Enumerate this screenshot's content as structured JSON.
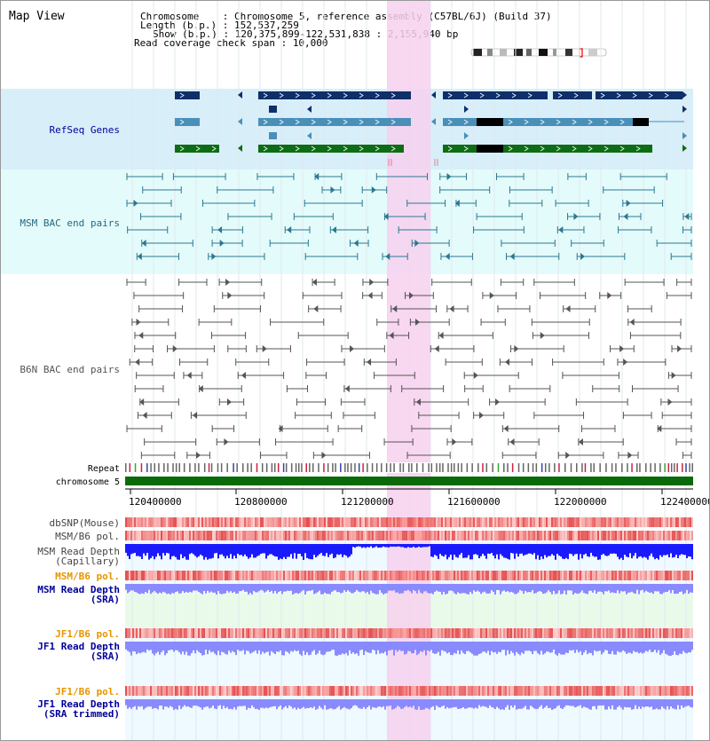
{
  "view_title": "Map View",
  "info": {
    "chromosome_label": "Chromosome    : ",
    "chromosome_value": "Chromosome 5, reference assembly (C57BL/6J) (Build 37)",
    "length_label": "Length (b.p.) : ",
    "length_value": "152,537,259",
    "show_label": "Show (b.p.) : ",
    "show_value": "120,375,899-122,531,838 : 2,155,940 bp",
    "coverage_label": "Read coverage check span : ",
    "coverage_value": "10,000"
  },
  "tracks": {
    "refseq": "RefSeq Genes",
    "msm_bac": "MSM BAC end pairs",
    "b6n_bac": "B6N BAC end pairs",
    "repeat": "Repeat",
    "chrom": "chromosome 5",
    "dbsnp": "dbSNP(Mouse)",
    "msm_b6_pol1": "MSM/B6 pol.",
    "msm_depth_cap_1": "MSM Read Depth",
    "msm_depth_cap_2": "(Capillary)",
    "msm_b6_pol2": "MSM/B6 pol.",
    "msm_depth_sra_1": "MSM Read Depth",
    "msm_depth_sra_2": "(SRA)",
    "jf1_b6_pol1": "JF1/B6 pol.",
    "jf1_depth_sra_1": "JF1 Read Depth",
    "jf1_depth_sra_2": "(SRA)",
    "jf1_b6_pol2": "JF1/B6 pol.",
    "jf1_depth_trim_1": "JF1 Read Depth",
    "jf1_depth_trim_2": "(SRA trimmed)"
  },
  "axis": {
    "ticks": [
      "120400000",
      "120800000",
      "121200000",
      "121600000",
      "122000000",
      "122400000"
    ]
  },
  "colors": {
    "refseq_bg": "#d8eef9",
    "msm_bg": "#e4fbfb",
    "highlight": "#f7d0ef",
    "gene_dark": "#0f2f6a",
    "gene_mid": "#4a8fb8",
    "gene_green": "#0d6d14",
    "msm_line": "#2b7891",
    "b6n_line": "#555555",
    "chrom_green": "#0a6a0a",
    "depth_blue": "#1a1aff",
    "depth_light": "#8a8aff",
    "pol_red": "#ee3333",
    "label_blue": "#000099",
    "label_teal": "#226b7f",
    "label_orange": "#e69500"
  }
}
